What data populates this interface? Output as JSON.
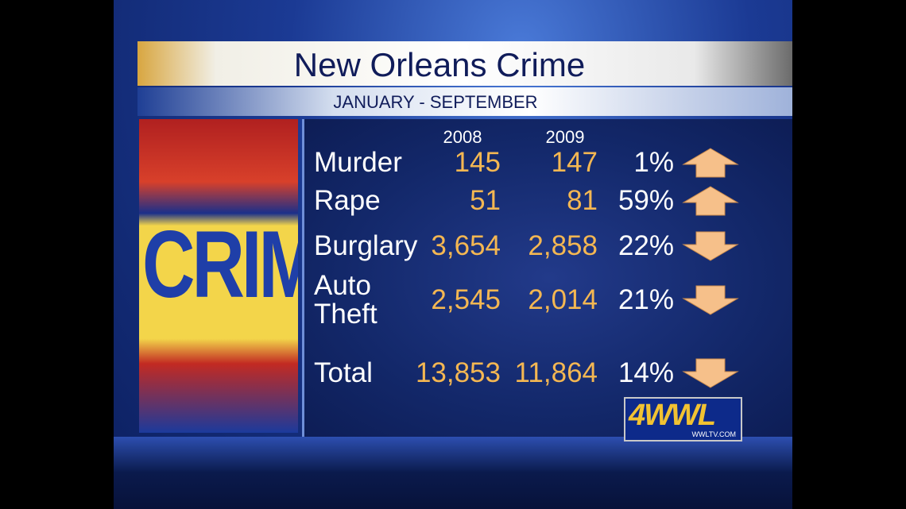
{
  "header": {
    "title": "New Orleans Crime",
    "subtitle": "JANUARY - SEPTEMBER"
  },
  "image": {
    "text": "CRIME"
  },
  "table": {
    "columns": [
      "2008",
      "2009"
    ],
    "rows": [
      {
        "label": "Murder",
        "values": [
          "145",
          "147"
        ],
        "change": "1%",
        "trend": "up"
      },
      {
        "label": "Rape",
        "values": [
          "51",
          "81"
        ],
        "change": "59%",
        "trend": "up"
      },
      {
        "label": "Burglary",
        "values": [
          "3,654",
          "2,858"
        ],
        "change": "22%",
        "trend": "down"
      },
      {
        "label": "Auto Theft",
        "values": [
          "2,545",
          "2,014"
        ],
        "change": "21%",
        "trend": "down"
      },
      {
        "label": "Total",
        "values": [
          "13,853",
          "11,864"
        ],
        "change": "14%",
        "trend": "down"
      }
    ]
  },
  "logo": {
    "text": "4WWL",
    "url": "WWLTV.COM"
  }
}
